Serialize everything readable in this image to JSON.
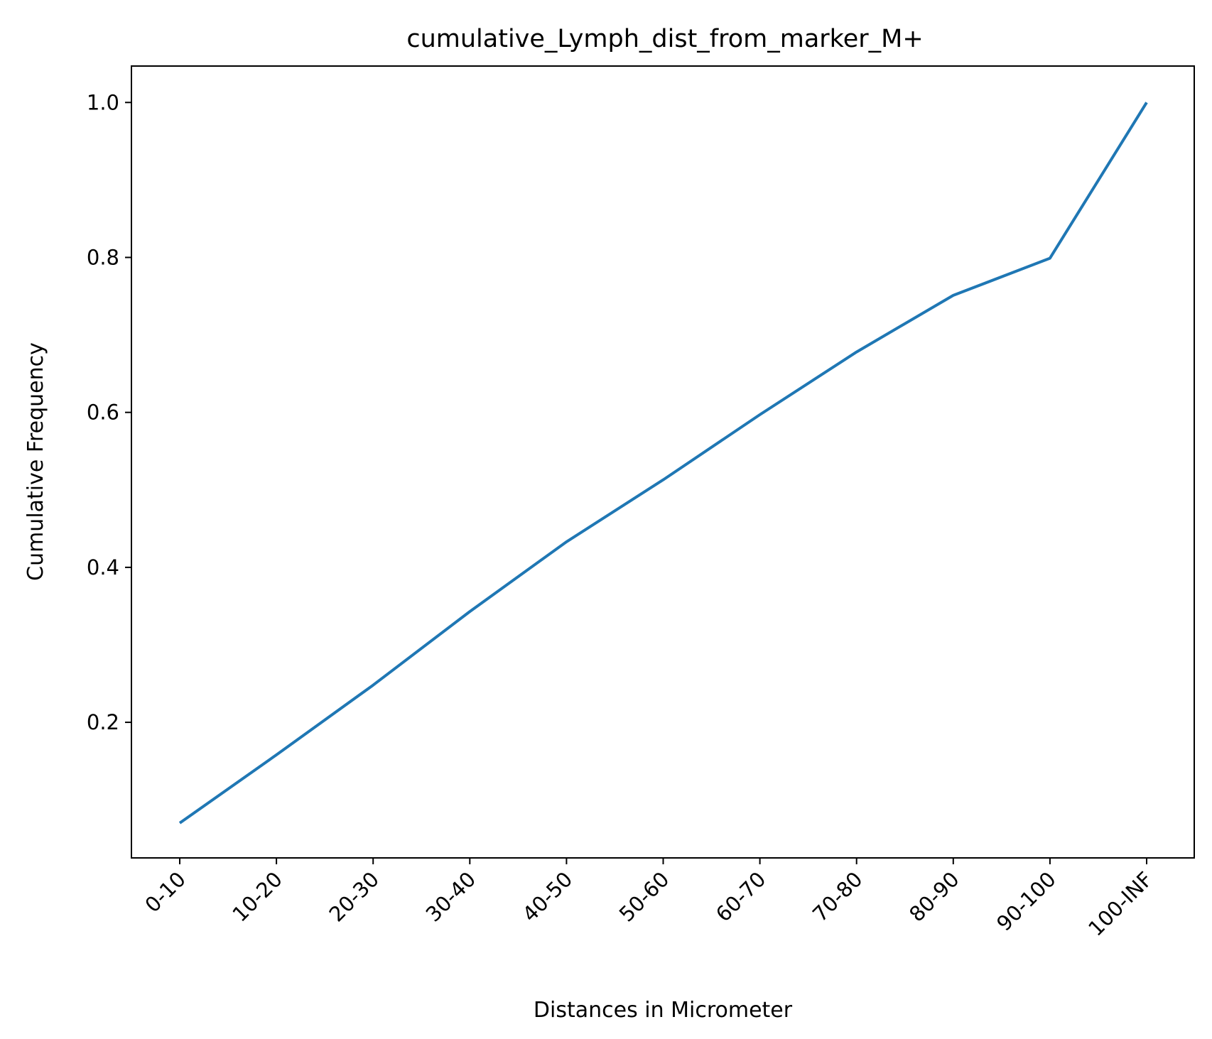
{
  "chart_data": {
    "type": "line",
    "title": "cumulative_Lymph_dist_from_marker_M+",
    "xlabel": "Distances in Micrometer",
    "ylabel": "Cumulative Frequency",
    "categories": [
      "0-10",
      "10-20",
      "20-30",
      "30-40",
      "40-50",
      "50-60",
      "60-70",
      "70-80",
      "80-90",
      "90-100",
      "100-INF"
    ],
    "series": [
      {
        "values": [
          0.07,
          0.158,
          0.248,
          0.343,
          0.433,
          0.513,
          0.597,
          0.678,
          0.751,
          0.799,
          1.0
        ],
        "color": "#1f77b4"
      }
    ],
    "ylim": [
      0.025,
      1.047
    ],
    "yticks": [
      0.2,
      0.4,
      0.6,
      0.8,
      1.0
    ],
    "ytick_labels": [
      "0.2",
      "0.4",
      "0.6",
      "0.8",
      "1.0"
    ],
    "xtick_rotation": 45,
    "grid": false,
    "legend": "none"
  }
}
